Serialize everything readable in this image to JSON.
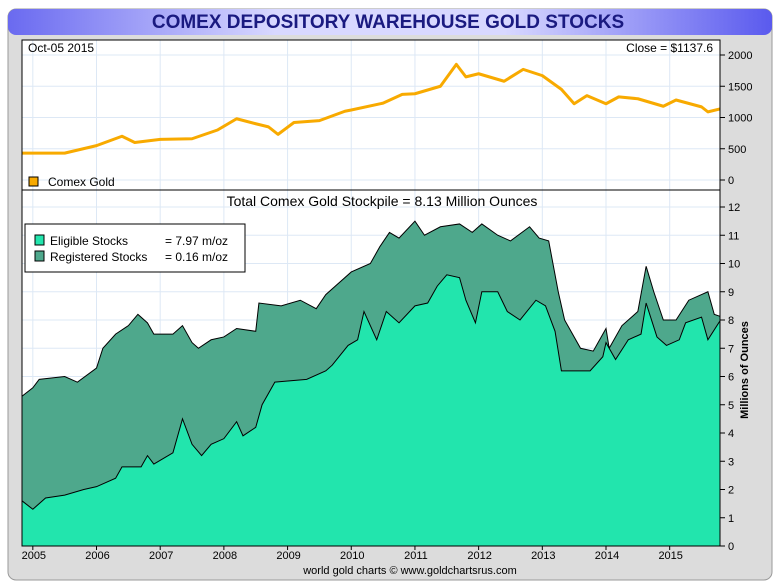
{
  "chart_data": [
    {
      "type": "line",
      "title": "COMEX DEPOSITORY WAREHOUSE GOLD STOCKS",
      "date_label": "Oct-05  2015",
      "close_label": "Close = $1137.6",
      "legend": [
        {
          "name": "Comex Gold",
          "color": "#f8aa00"
        }
      ],
      "ylim": [
        0,
        2000
      ],
      "yticks": [
        "0",
        "500",
        "1000",
        "1500",
        "2000"
      ],
      "xlim": [
        2004.83,
        2015.79
      ],
      "x": [
        2004.83,
        2005.5,
        2006.0,
        2006.4,
        2006.6,
        2007.0,
        2007.5,
        2007.9,
        2008.2,
        2008.5,
        2008.7,
        2008.85,
        2009.1,
        2009.5,
        2009.9,
        2010.0,
        2010.5,
        2010.8,
        2011.0,
        2011.4,
        2011.65,
        2011.8,
        2012.0,
        2012.4,
        2012.7,
        2013.0,
        2013.3,
        2013.5,
        2013.7,
        2014.0,
        2014.2,
        2014.5,
        2014.9,
        2015.1,
        2015.5,
        2015.6,
        2015.79
      ],
      "values": [
        430,
        430,
        550,
        700,
        600,
        650,
        660,
        800,
        980,
        900,
        850,
        730,
        920,
        950,
        1100,
        1120,
        1230,
        1370,
        1380,
        1500,
        1850,
        1650,
        1700,
        1580,
        1770,
        1670,
        1450,
        1220,
        1350,
        1220,
        1330,
        1300,
        1180,
        1280,
        1170,
        1090,
        1137.6
      ]
    },
    {
      "type": "area",
      "title": "Total Comex Gold Stockpile = 8.13 Million Ounces",
      "ylabel": "Millions of Ounces",
      "ylim": [
        0,
        12
      ],
      "yticks": [
        "0",
        "1",
        "2",
        "3",
        "4",
        "5",
        "6",
        "7",
        "8",
        "9",
        "10",
        "11",
        "12"
      ],
      "xlim": [
        2004.83,
        2015.79
      ],
      "xticks": [
        "2005",
        "2006",
        "2007",
        "2008",
        "2009",
        "2010",
        "2011",
        "2012",
        "2013",
        "2014",
        "2015"
      ],
      "credit": "world gold charts © www.goldchartsrus.com",
      "legend": [
        {
          "name": "Eligible Stocks",
          "value": "= 7.97 m/oz",
          "color": "#22e5ad"
        },
        {
          "name": "Registered Stocks",
          "value": "= 0.16 m/oz",
          "color": "#4ea88c"
        }
      ],
      "series": [
        {
          "name": "Total",
          "x": [
            2004.83,
            2005.0,
            2005.1,
            2005.5,
            2005.7,
            2006.0,
            2006.1,
            2006.3,
            2006.5,
            2006.65,
            2006.8,
            2006.9,
            2007.2,
            2007.35,
            2007.5,
            2007.6,
            2007.8,
            2008.0,
            2008.2,
            2008.5,
            2008.55,
            2008.9,
            2009.2,
            2009.45,
            2009.6,
            2010.0,
            2010.3,
            2010.45,
            2010.6,
            2010.75,
            2011.0,
            2011.15,
            2011.4,
            2011.7,
            2011.9,
            2012.05,
            2012.3,
            2012.5,
            2012.8,
            2012.95,
            2013.1,
            2013.25,
            2013.35,
            2013.6,
            2013.8,
            2014.0,
            2014.05,
            2014.25,
            2014.5,
            2014.63,
            2014.75,
            2014.9,
            2015.1,
            2015.3,
            2015.5,
            2015.6,
            2015.7,
            2015.79
          ],
          "values": [
            5.3,
            5.6,
            5.9,
            6.0,
            5.8,
            6.3,
            7.0,
            7.5,
            7.8,
            8.2,
            7.9,
            7.5,
            7.5,
            7.8,
            7.2,
            7.0,
            7.3,
            7.4,
            7.7,
            7.6,
            8.6,
            8.5,
            8.7,
            8.4,
            8.9,
            9.7,
            10.0,
            10.6,
            11.1,
            10.9,
            11.5,
            11.0,
            11.3,
            11.4,
            11.1,
            11.4,
            11.0,
            10.8,
            11.3,
            10.9,
            10.8,
            9.0,
            8.0,
            7.0,
            6.9,
            7.7,
            7.0,
            7.8,
            8.3,
            9.9,
            9.0,
            8.0,
            8.0,
            8.7,
            8.9,
            9.0,
            8.2,
            8.13
          ]
        },
        {
          "name": "Eligible Stocks",
          "x": [
            2004.83,
            2005.0,
            2005.2,
            2005.5,
            2005.8,
            2006.0,
            2006.3,
            2006.4,
            2006.7,
            2006.8,
            2006.9,
            2007.2,
            2007.35,
            2007.5,
            2007.65,
            2007.8,
            2008.0,
            2008.2,
            2008.3,
            2008.5,
            2008.6,
            2008.8,
            2009.3,
            2009.6,
            2009.7,
            2009.95,
            2010.1,
            2010.2,
            2010.4,
            2010.55,
            2010.75,
            2011.0,
            2011.2,
            2011.35,
            2011.5,
            2011.7,
            2011.8,
            2011.95,
            2012.05,
            2012.3,
            2012.45,
            2012.65,
            2012.9,
            2013.05,
            2013.2,
            2013.3,
            2013.5,
            2013.75,
            2013.95,
            2014.0,
            2014.15,
            2014.35,
            2014.55,
            2014.63,
            2014.8,
            2014.95,
            2015.15,
            2015.25,
            2015.5,
            2015.6,
            2015.79
          ],
          "values": [
            1.6,
            1.3,
            1.7,
            1.8,
            2.0,
            2.1,
            2.4,
            2.8,
            2.8,
            3.2,
            2.9,
            3.3,
            4.5,
            3.6,
            3.2,
            3.6,
            3.8,
            4.4,
            3.9,
            4.2,
            5.0,
            5.8,
            5.9,
            6.2,
            6.4,
            7.1,
            7.3,
            8.3,
            7.3,
            8.3,
            7.9,
            8.5,
            8.6,
            9.2,
            9.6,
            9.5,
            8.7,
            7.9,
            9.0,
            9.0,
            8.3,
            8.0,
            8.7,
            8.5,
            7.6,
            6.2,
            6.2,
            6.2,
            6.7,
            7.2,
            6.6,
            7.3,
            7.5,
            8.6,
            7.4,
            7.1,
            7.3,
            7.9,
            8.1,
            7.3,
            7.97
          ]
        }
      ]
    }
  ]
}
